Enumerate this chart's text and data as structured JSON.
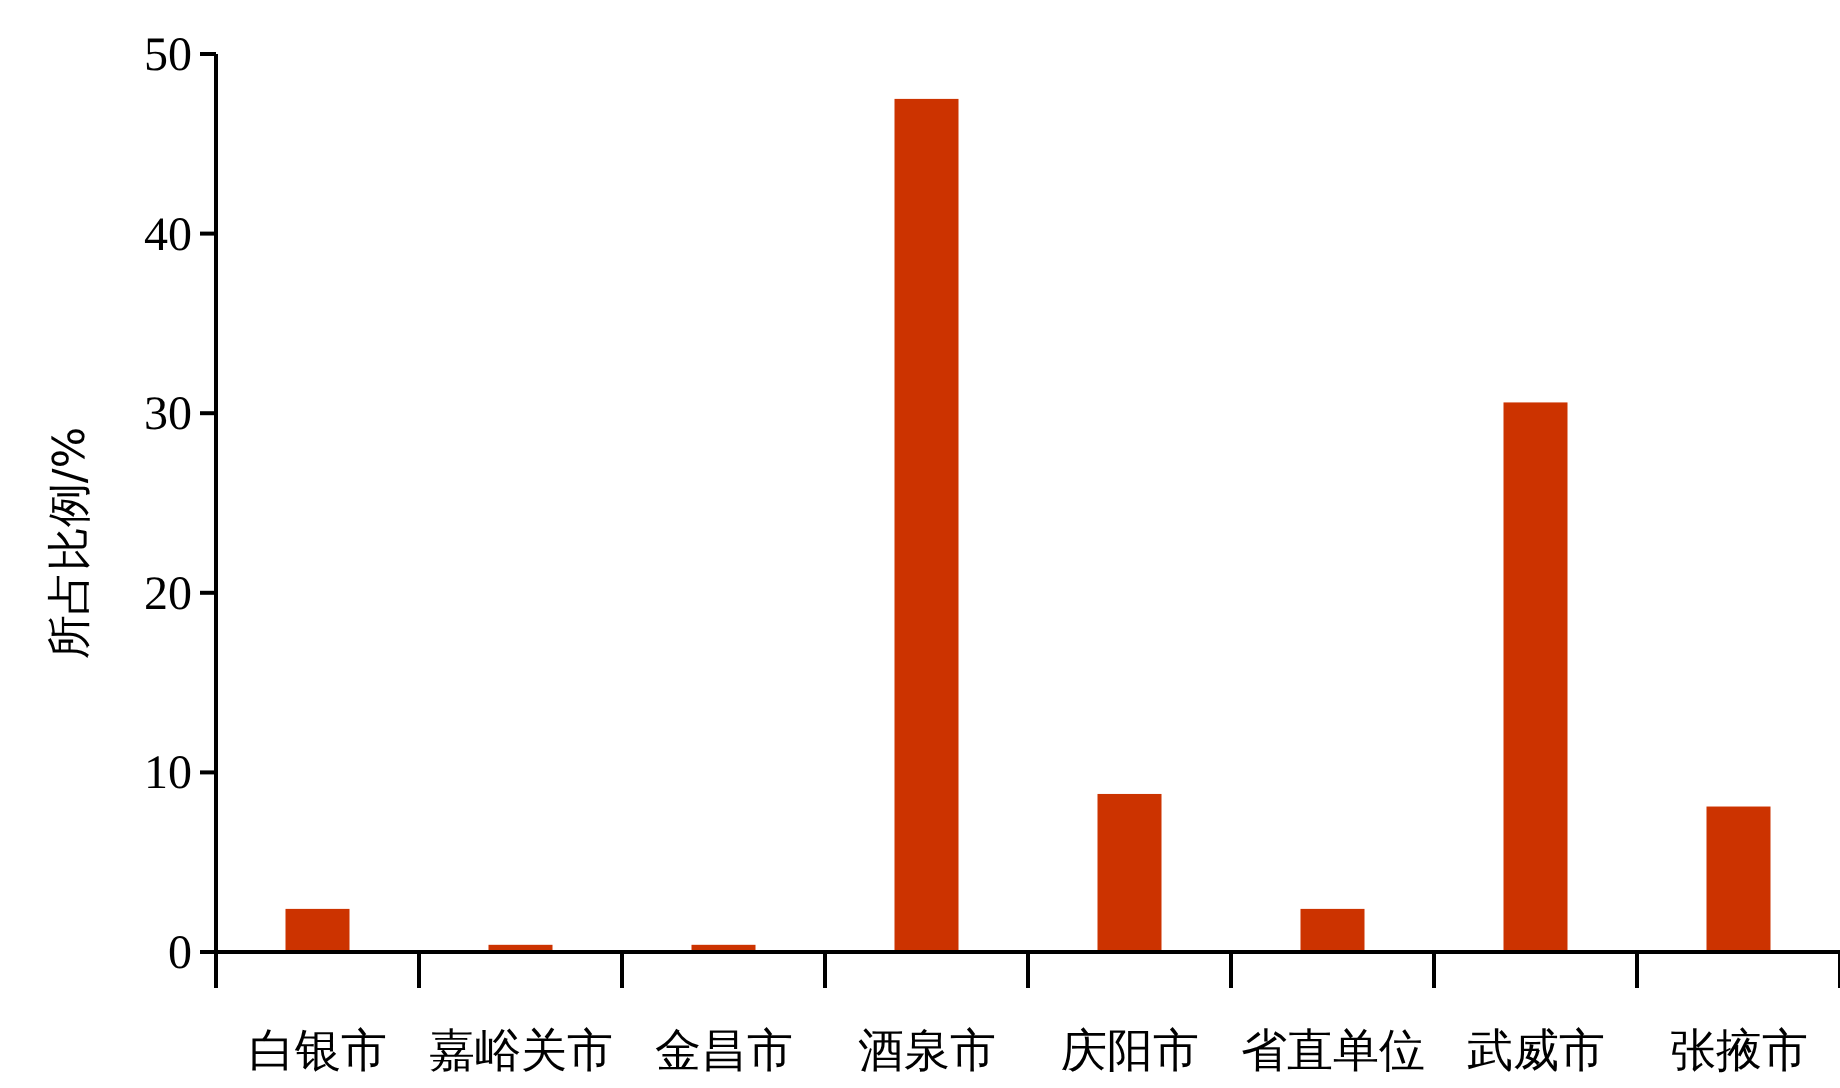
{
  "chart_data": {
    "type": "bar",
    "ylabel": "所占比例/%",
    "categories": [
      "白银市",
      "嘉峪关市",
      "金昌市",
      "酒泉市",
      "庆阳市",
      "省直单位",
      "武威市",
      "张掖市"
    ],
    "values": [
      2.4,
      0.4,
      0.4,
      47.5,
      8.8,
      2.4,
      30.6,
      8.1
    ],
    "color": "#cc3300",
    "ylim": [
      0,
      50
    ],
    "yticks": [
      0,
      10,
      20,
      30,
      40,
      50
    ],
    "grid": false
  }
}
